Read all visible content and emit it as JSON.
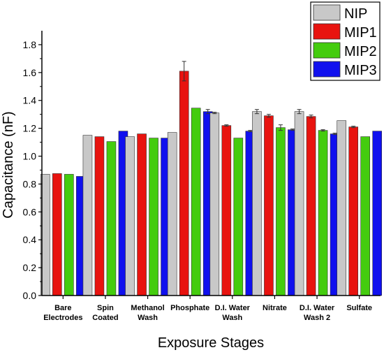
{
  "chart_data": {
    "type": "bar",
    "xlabel": "Exposure Stages",
    "ylabel": "Capacitance (nF)",
    "ylim": [
      0.0,
      1.9
    ],
    "yticks": [
      "0.0",
      "0.2",
      "0.4",
      "0.6",
      "0.8",
      "1.0",
      "1.2",
      "1.4",
      "1.6",
      "1.8"
    ],
    "categories": [
      [
        "Bare",
        "Electrodes"
      ],
      [
        "Spin",
        "Coated"
      ],
      [
        "Methanol",
        "Wash"
      ],
      [
        "Phosphate"
      ],
      [
        "D.I. Water",
        "Wash"
      ],
      [
        "Nitrate"
      ],
      [
        "D.I. Water",
        "Wash 2"
      ],
      [
        "Sulfate"
      ]
    ],
    "legend_position": "top-right",
    "grid": false,
    "series": [
      {
        "name": "NIP",
        "color": "#c8c8c8",
        "values": [
          0.87,
          1.15,
          1.14,
          1.17,
          1.31,
          1.32,
          1.32,
          1.255
        ],
        "errors": [
          0.0,
          0.0,
          0.0,
          0.0,
          0.005,
          0.015,
          0.015,
          0.0
        ]
      },
      {
        "name": "MIP1",
        "color": "#e8130f",
        "values": [
          0.875,
          1.14,
          1.16,
          1.61,
          1.22,
          1.29,
          1.285,
          1.21
        ],
        "errors": [
          0.0,
          0.0,
          0.0,
          0.07,
          0.005,
          0.01,
          0.01,
          0.005
        ]
      },
      {
        "name": "MIP2",
        "color": "#44cc0e",
        "values": [
          0.87,
          1.105,
          1.13,
          1.345,
          1.13,
          1.205,
          1.185,
          1.14
        ],
        "errors": [
          0.0,
          0.0,
          0.0,
          0.0,
          0.0,
          0.02,
          0.005,
          0.0
        ]
      },
      {
        "name": "MIP3",
        "color": "#1010ee",
        "values": [
          0.855,
          1.18,
          1.13,
          1.32,
          1.18,
          1.19,
          1.16,
          1.18
        ],
        "errors": [
          0.0,
          0.0,
          0.0,
          0.015,
          0.005,
          0.005,
          0.005,
          0.0
        ]
      }
    ]
  }
}
